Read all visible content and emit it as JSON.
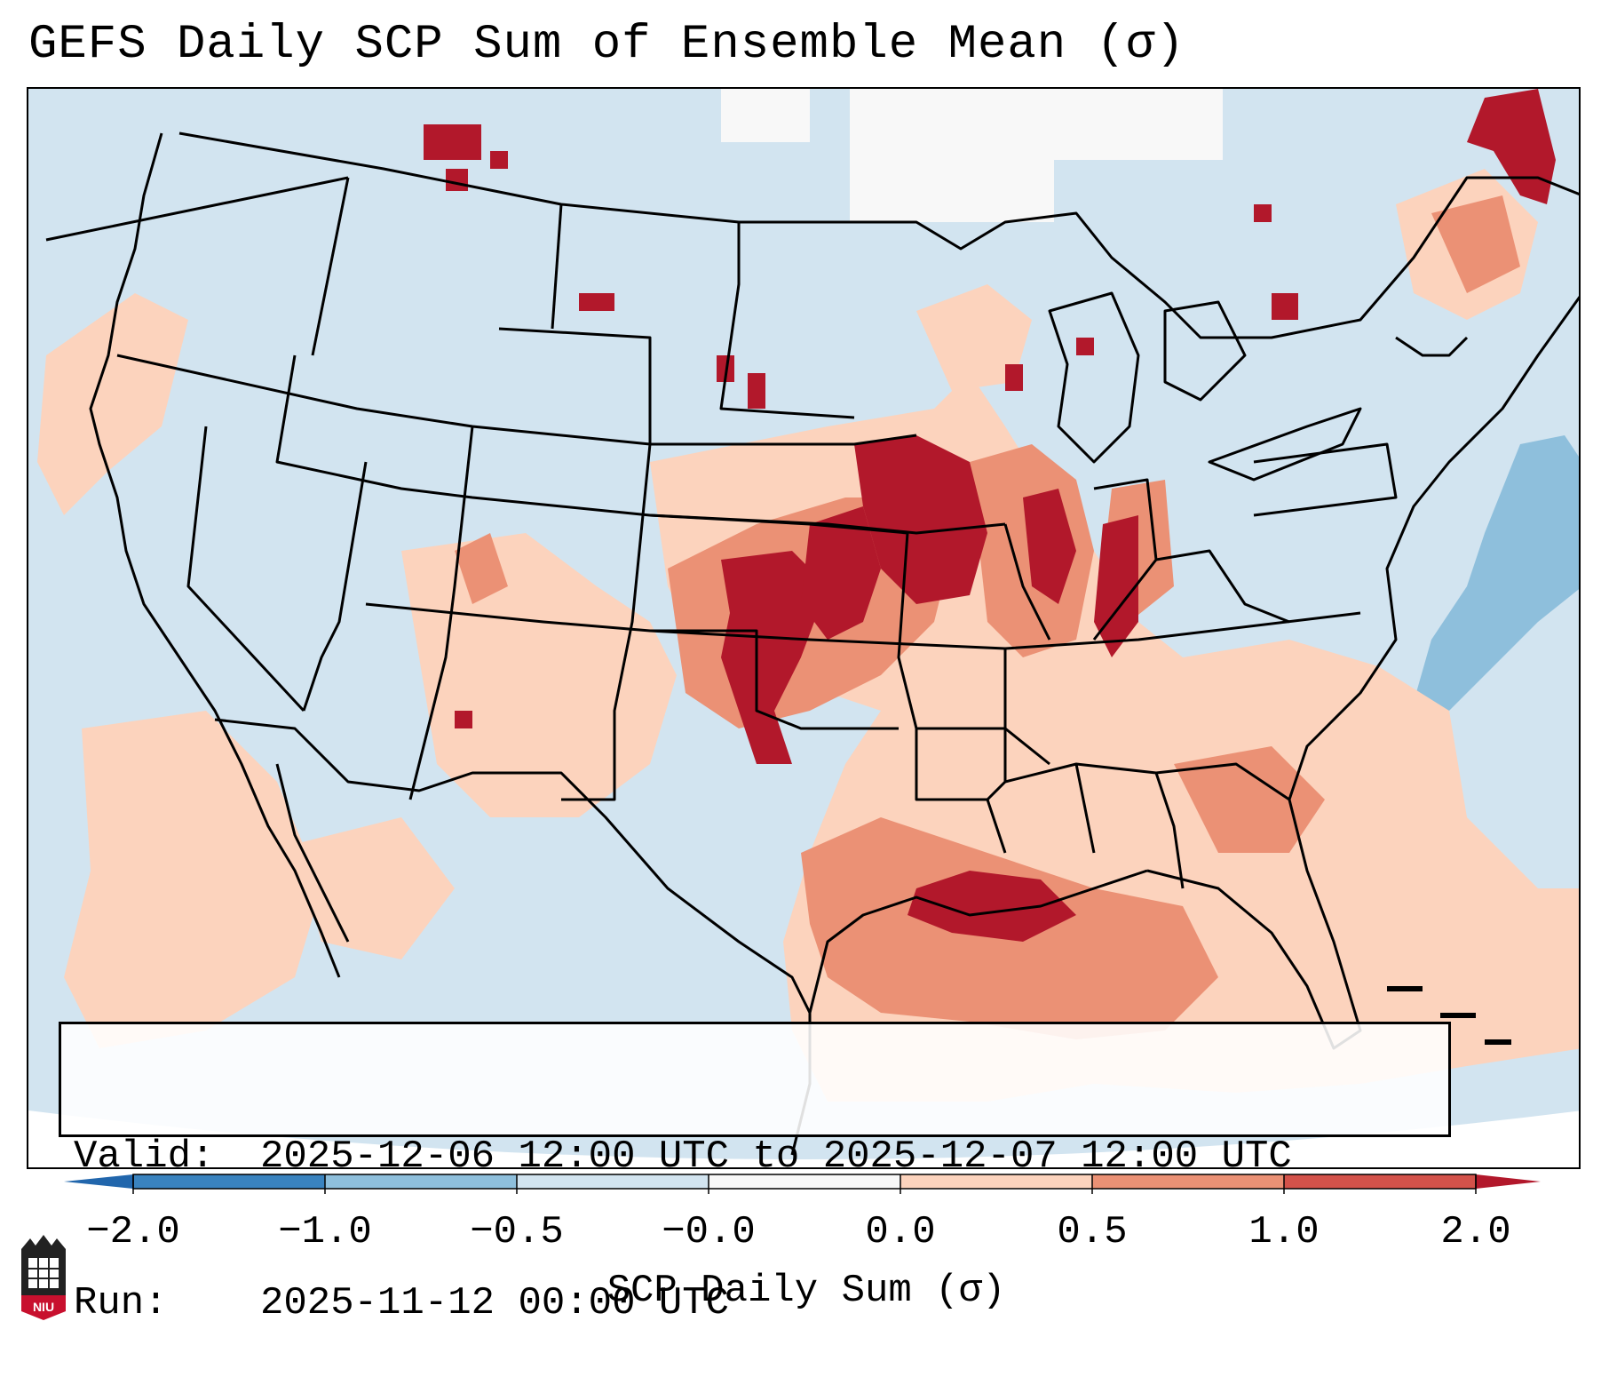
{
  "title": "GEFS Daily SCP Sum of Ensemble Mean (σ)",
  "info": {
    "valid_key": "Valid:",
    "valid_value": "2025-12-06 12:00 UTC to 2025-12-07 12:00 UTC",
    "run_key": "Run:",
    "run_value": "2025-11-12 00:00 UTC"
  },
  "colorbar": {
    "label": "SCP Daily Sum (σ)",
    "ticks": [
      "−2.0",
      "−1.0",
      "−0.5",
      "−0.0",
      "0.0",
      "0.5",
      "1.0",
      "2.0"
    ],
    "colors": [
      "#3a83bf",
      "#8ebfdc",
      "#d2e4f0",
      "#f8f8f8",
      "#fcd3bd",
      "#eb9175",
      "#d3524a"
    ],
    "extend_low": "#2166ac",
    "extend_high": "#b2182b"
  },
  "logo": {
    "text": "NIU",
    "color": "#c8102e"
  }
}
